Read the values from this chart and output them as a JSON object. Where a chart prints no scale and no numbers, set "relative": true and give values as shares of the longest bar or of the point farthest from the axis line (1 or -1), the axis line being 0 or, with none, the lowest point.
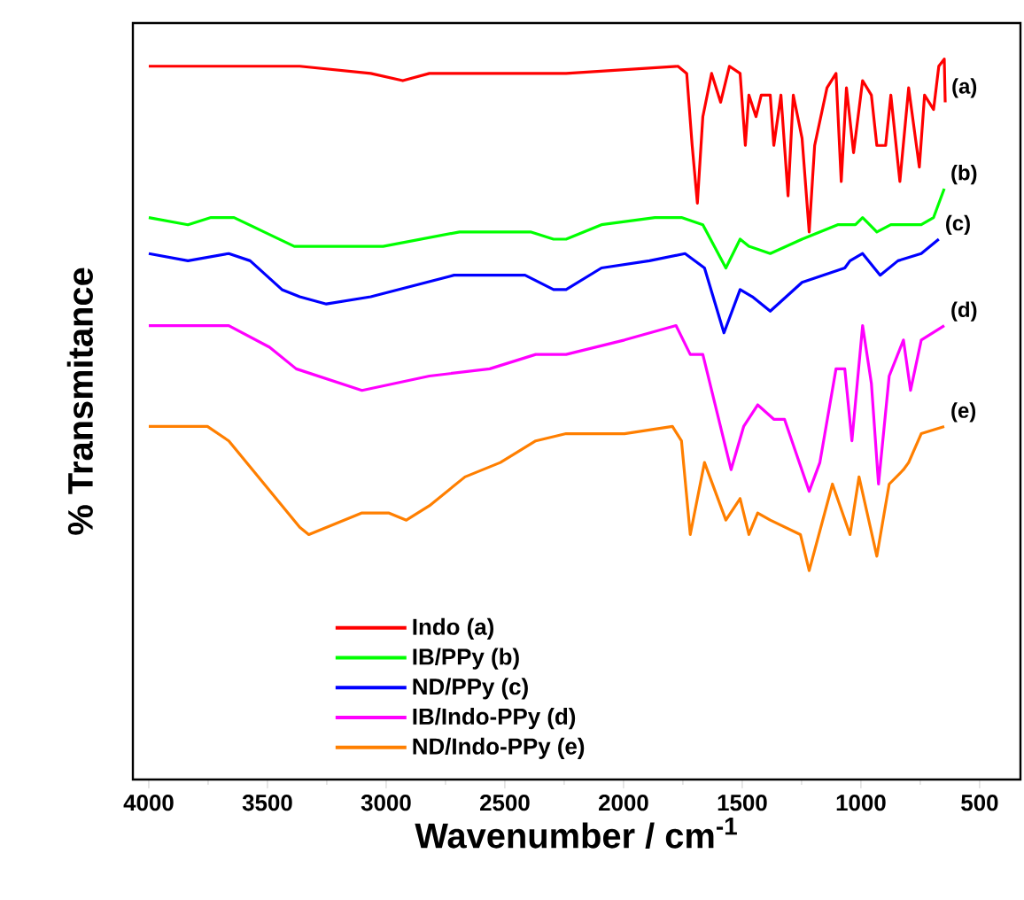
{
  "chart_data": {
    "type": "line",
    "relative": true,
    "xlabel": "Wavenumber / cm$^{-1}$",
    "ylabel": "% Transmitance",
    "xlim": [
      4067,
      328
    ],
    "xticks": [
      4000,
      3500,
      3000,
      2500,
      2000,
      1500,
      1000,
      500
    ],
    "legend": "bottom",
    "line_style": "solid",
    "marker": "none",
    "grid": false,
    "annotations": [
      "(a)",
      "(b)",
      "(c)",
      "(d)",
      "(e)"
    ],
    "series": [
      {
        "name": "Indo (a)",
        "color": "#ff0000",
        "x": [
          4000,
          3364,
          3065,
          2930,
          2818,
          2564,
          2242,
          1771,
          1734,
          1711,
          1689,
          1666,
          1629,
          1591,
          1554,
          1509,
          1487,
          1472,
          1442,
          1420,
          1382,
          1367,
          1337,
          1307,
          1285,
          1248,
          1218,
          1195,
          1143,
          1105,
          1083,
          1061,
          1031,
          993,
          956,
          933,
          896,
          874,
          836,
          799,
          754,
          732,
          694,
          672,
          649,
          645
        ],
        "values": [
          0.99,
          0.99,
          0.98,
          0.97,
          0.98,
          0.98,
          0.98,
          0.99,
          0.98,
          0.88,
          0.8,
          0.92,
          0.98,
          0.94,
          0.99,
          0.98,
          0.88,
          0.95,
          0.92,
          0.95,
          0.95,
          0.88,
          0.95,
          0.81,
          0.95,
          0.89,
          0.76,
          0.88,
          0.96,
          0.98,
          0.83,
          0.96,
          0.87,
          0.97,
          0.95,
          0.88,
          0.88,
          0.95,
          0.83,
          0.96,
          0.85,
          0.95,
          0.93,
          0.99,
          1.0,
          0.94
        ]
      },
      {
        "name": "IB/PPy (b)",
        "color": "#00ff00",
        "x": [
          4000,
          3835,
          3738,
          3641,
          3514,
          3387,
          3252,
          3013,
          2691,
          2392,
          2295,
          2242,
          2093,
          1868,
          1756,
          1666,
          1569,
          1509,
          1472,
          1382,
          1248,
          1098,
          1023,
          993,
          933,
          874,
          746,
          694,
          649
        ],
        "values": [
          0.78,
          0.77,
          0.78,
          0.78,
          0.76,
          0.74,
          0.74,
          0.74,
          0.76,
          0.76,
          0.75,
          0.75,
          0.77,
          0.78,
          0.78,
          0.77,
          0.71,
          0.75,
          0.74,
          0.73,
          0.75,
          0.77,
          0.77,
          0.78,
          0.76,
          0.77,
          0.77,
          0.78,
          0.82
        ]
      },
      {
        "name": "ND/PPy (c)",
        "color": "#0000ff",
        "x": [
          4000,
          3835,
          3663,
          3573,
          3439,
          3364,
          3252,
          3065,
          2714,
          2415,
          2295,
          2242,
          2093,
          1891,
          1741,
          1659,
          1577,
          1509,
          1457,
          1382,
          1248,
          1068,
          1046,
          993,
          919,
          844,
          746,
          672
        ],
        "values": [
          0.73,
          0.72,
          0.73,
          0.72,
          0.68,
          0.67,
          0.66,
          0.67,
          0.7,
          0.7,
          0.68,
          0.68,
          0.71,
          0.72,
          0.73,
          0.71,
          0.62,
          0.68,
          0.67,
          0.65,
          0.69,
          0.71,
          0.72,
          0.73,
          0.7,
          0.72,
          0.73,
          0.75
        ]
      },
      {
        "name": "IB/Indo-PPy (d)",
        "color": "#ff00ff",
        "x": [
          4000,
          3663,
          3491,
          3379,
          3102,
          2818,
          2564,
          2370,
          2242,
          1996,
          1779,
          1719,
          1666,
          1547,
          1494,
          1435,
          1367,
          1322,
          1218,
          1173,
          1105,
          1068,
          1038,
          993,
          956,
          926,
          881,
          821,
          791,
          746,
          649
        ],
        "values": [
          0.63,
          0.63,
          0.6,
          0.57,
          0.54,
          0.56,
          0.57,
          0.59,
          0.59,
          0.61,
          0.63,
          0.59,
          0.59,
          0.43,
          0.49,
          0.52,
          0.5,
          0.5,
          0.4,
          0.44,
          0.57,
          0.57,
          0.47,
          0.63,
          0.55,
          0.41,
          0.56,
          0.61,
          0.54,
          0.61,
          0.63
        ]
      },
      {
        "name": "ND/Indo-PPy (e)",
        "color": "#ff7f00",
        "x": [
          4000,
          3753,
          3663,
          3364,
          3326,
          3102,
          2990,
          2915,
          2818,
          2668,
          2519,
          2370,
          2242,
          1996,
          1794,
          1756,
          1719,
          1659,
          1569,
          1509,
          1472,
          1435,
          1382,
          1255,
          1218,
          1120,
          1046,
          1008,
          933,
          881,
          821,
          799,
          746,
          649
        ],
        "values": [
          0.49,
          0.49,
          0.47,
          0.35,
          0.34,
          0.37,
          0.37,
          0.36,
          0.38,
          0.42,
          0.44,
          0.47,
          0.48,
          0.48,
          0.49,
          0.47,
          0.34,
          0.44,
          0.36,
          0.39,
          0.34,
          0.37,
          0.36,
          0.34,
          0.29,
          0.41,
          0.34,
          0.42,
          0.31,
          0.41,
          0.43,
          0.44,
          0.48,
          0.49
        ]
      }
    ]
  }
}
